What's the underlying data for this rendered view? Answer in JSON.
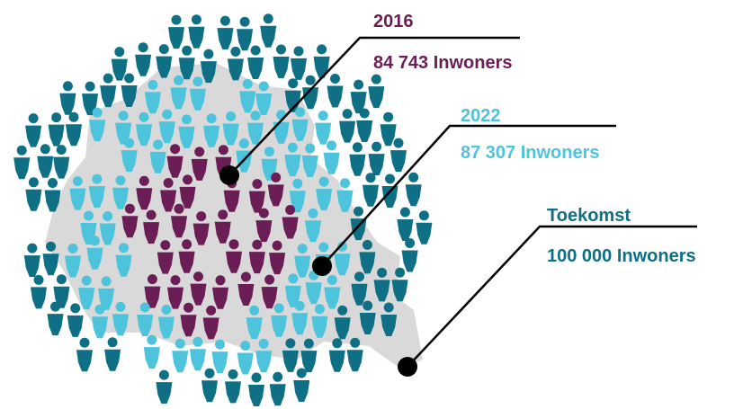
{
  "callouts": [
    {
      "year": "2016",
      "population": "84 743 Inwoners"
    },
    {
      "year": "2022",
      "population": "87 307  Inwoners"
    },
    {
      "year": "Toekomst",
      "population": "100 000  Inwoners"
    }
  ]
}
